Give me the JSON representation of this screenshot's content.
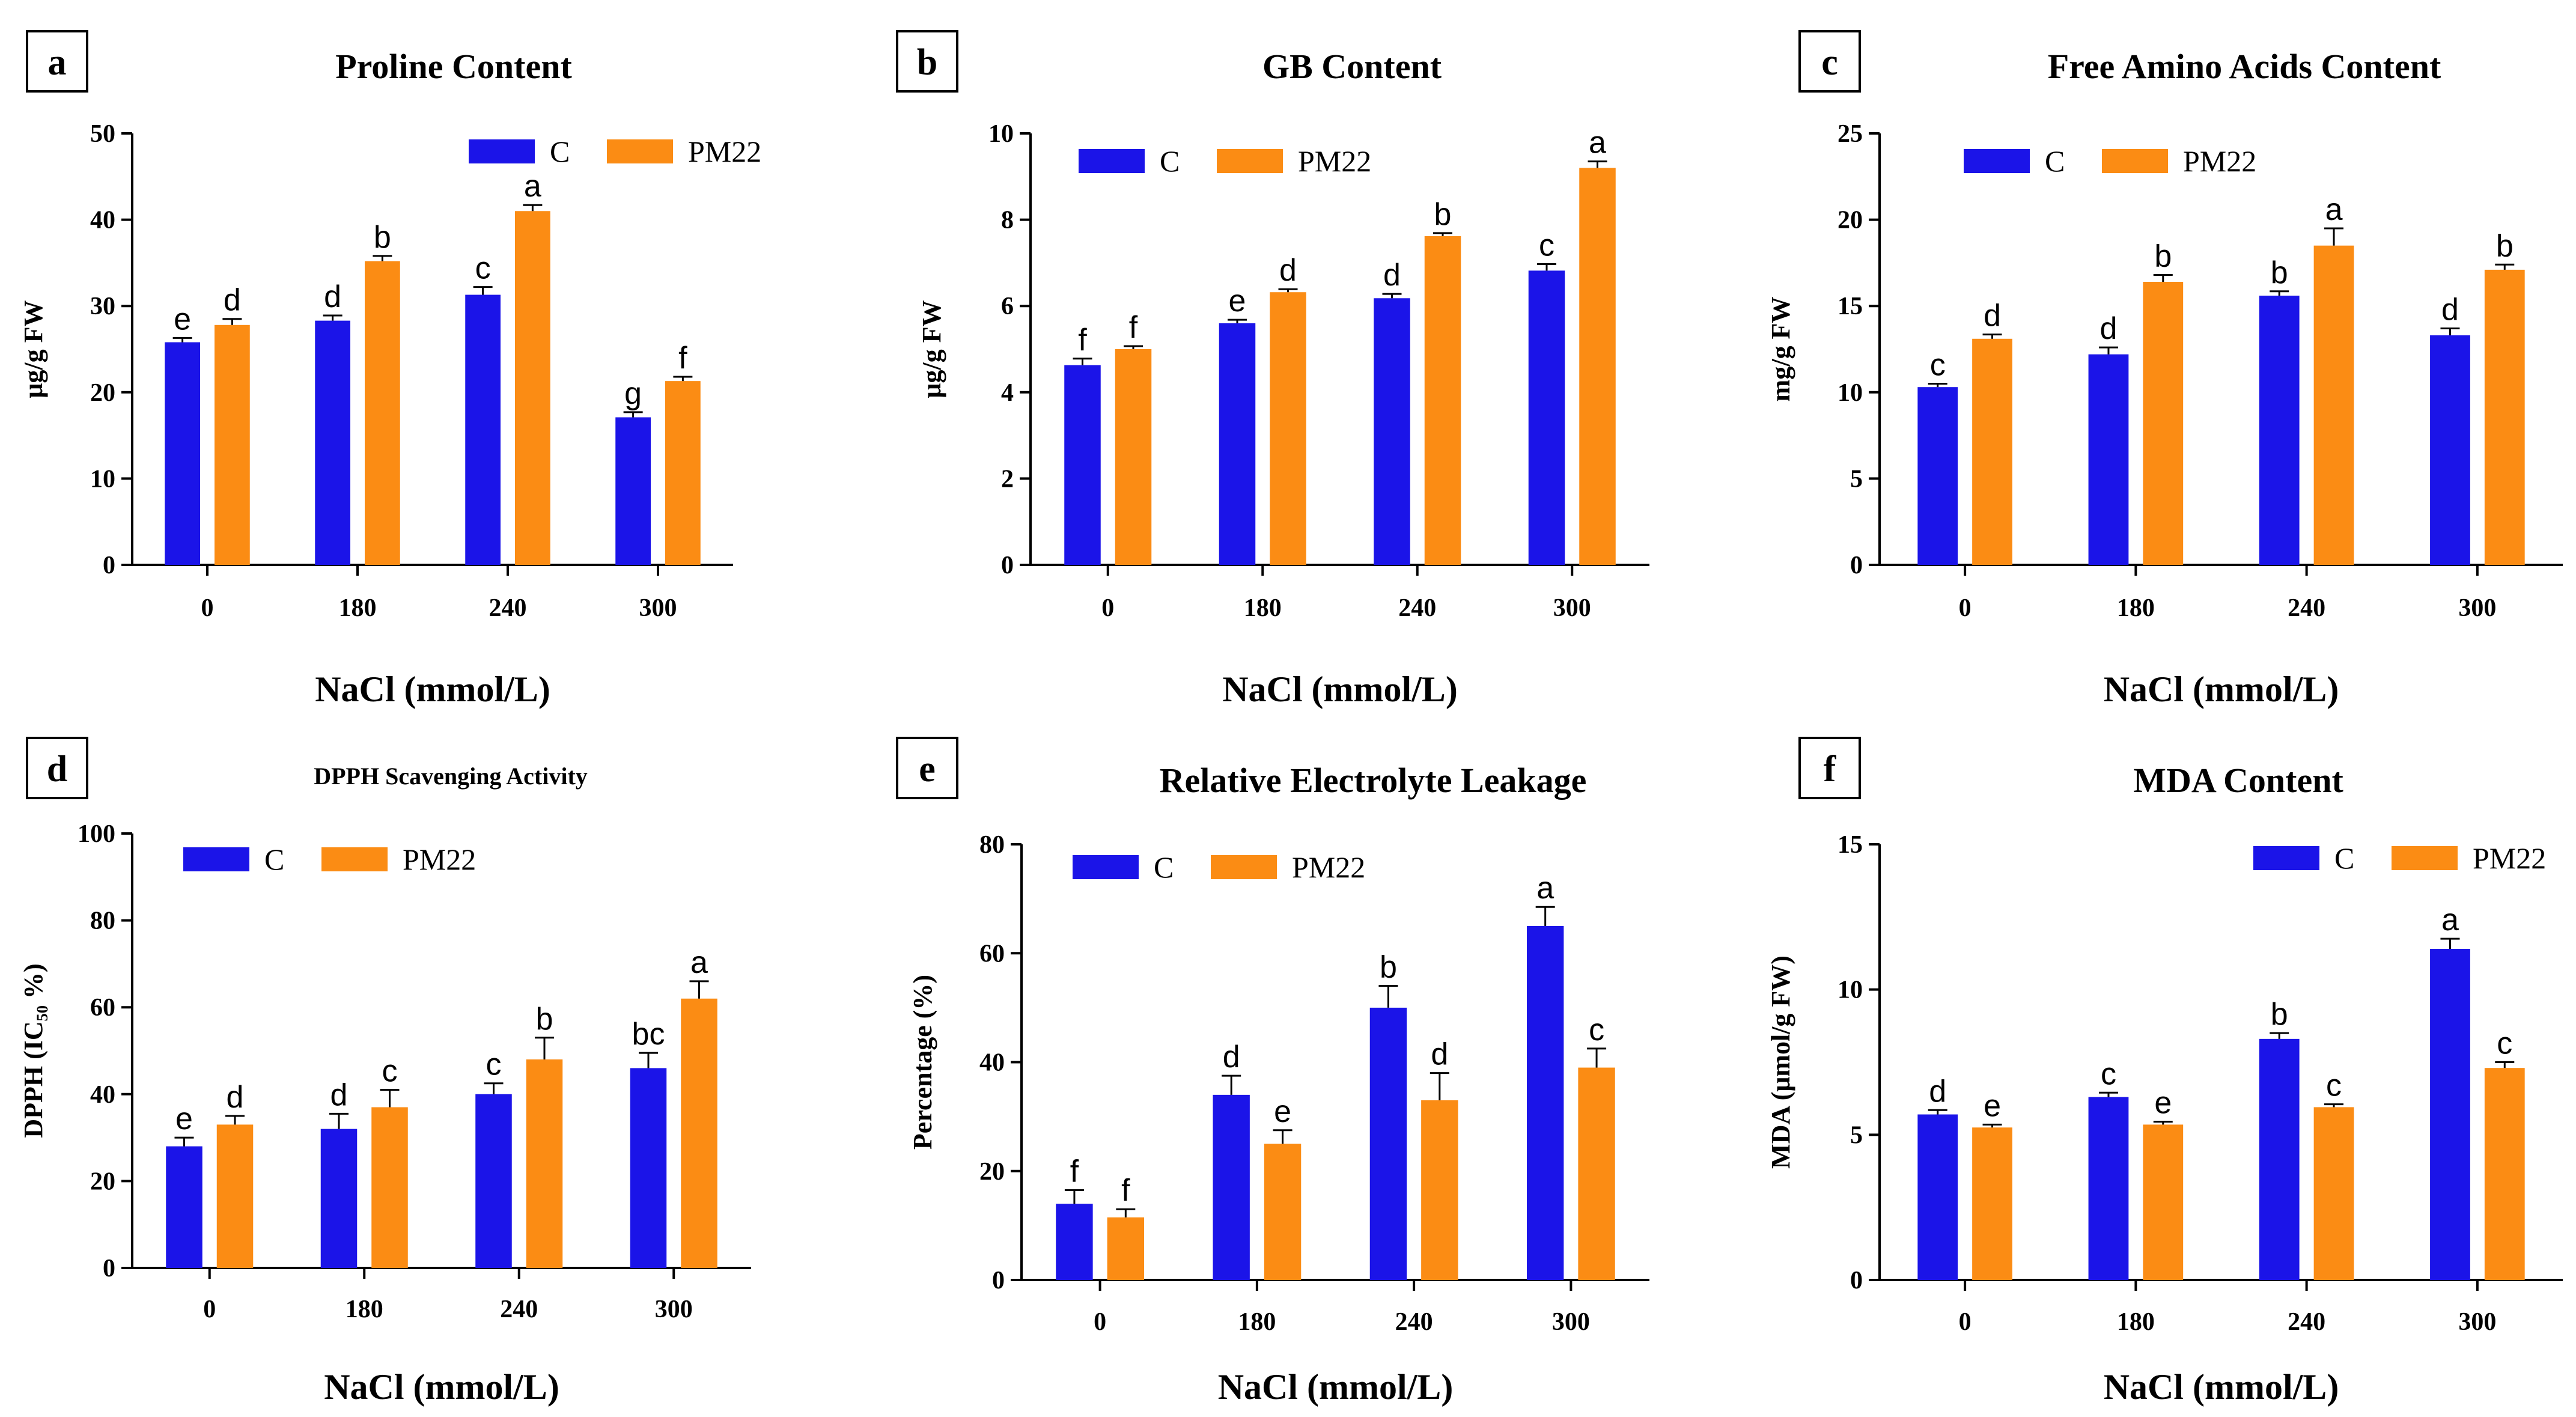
{
  "colors": {
    "C": "#1b14e8",
    "PM22": "#fb8c14",
    "axis": "#000000"
  },
  "chart_data": [
    {
      "panel": "a",
      "type": "bar",
      "title": "Proline Content",
      "ylabel": "μg/g FW",
      "xlabel": "NaCl (mmol/L)",
      "categories": [
        "0",
        "180",
        "240",
        "300"
      ],
      "ylim": [
        0,
        50
      ],
      "yticks": [
        0,
        10,
        20,
        30,
        40,
        50
      ],
      "legend_position": "top-right",
      "series": [
        {
          "name": "C",
          "values": [
            25.8,
            28.3,
            31.3,
            17.1
          ],
          "errors": [
            0.5,
            0.6,
            0.9,
            0.6
          ],
          "letters": [
            "e",
            "d",
            "c",
            "g"
          ]
        },
        {
          "name": "PM22",
          "values": [
            27.8,
            35.2,
            41.0,
            21.3
          ],
          "errors": [
            0.7,
            0.6,
            0.7,
            0.5
          ],
          "letters": [
            "d",
            "b",
            "a",
            "f"
          ]
        }
      ]
    },
    {
      "panel": "b",
      "type": "bar",
      "title": "GB Content",
      "ylabel": "μg/g FW",
      "xlabel": "NaCl (mmol/L)",
      "categories": [
        "0",
        "180",
        "240",
        "300"
      ],
      "ylim": [
        0,
        10
      ],
      "yticks": [
        0,
        2,
        4,
        6,
        8,
        10
      ],
      "legend_position": "top-left",
      "series": [
        {
          "name": "C",
          "values": [
            4.63,
            5.6,
            6.18,
            6.82
          ],
          "errors": [
            0.15,
            0.08,
            0.1,
            0.15
          ],
          "letters": [
            "f",
            "e",
            "d",
            "c"
          ]
        },
        {
          "name": "PM22",
          "values": [
            5.0,
            6.32,
            7.62,
            9.2
          ],
          "errors": [
            0.07,
            0.07,
            0.07,
            0.15
          ],
          "letters": [
            "f",
            "d",
            "b",
            "a"
          ]
        }
      ]
    },
    {
      "panel": "c",
      "type": "bar",
      "title": "Free Amino Acids Content",
      "ylabel": "mg/g FW",
      "xlabel": "NaCl (mmol/L)",
      "categories": [
        "0",
        "180",
        "240",
        "300"
      ],
      "ylim": [
        0,
        25
      ],
      "yticks": [
        0,
        5,
        10,
        15,
        20,
        25
      ],
      "legend_position": "top-left",
      "series": [
        {
          "name": "C",
          "values": [
            10.3,
            12.2,
            15.6,
            13.3
          ],
          "errors": [
            0.2,
            0.4,
            0.25,
            0.4
          ],
          "letters": [
            "c",
            "d",
            "b",
            "d"
          ]
        },
        {
          "name": "PM22",
          "values": [
            13.1,
            16.4,
            18.5,
            17.1
          ],
          "errors": [
            0.25,
            0.4,
            1.0,
            0.3
          ],
          "letters": [
            "d",
            "b",
            "a",
            "b"
          ]
        }
      ]
    },
    {
      "panel": "d",
      "type": "bar",
      "title": "DPPH Scavenging Activity",
      "ylabel": "DPPH (IC₅₀ %)",
      "xlabel": "NaCl (mmol/L)",
      "categories": [
        "0",
        "180",
        "240",
        "300"
      ],
      "ylim": [
        0,
        100
      ],
      "yticks": [
        0,
        20,
        40,
        60,
        80,
        100
      ],
      "legend_position": "top-left",
      "series": [
        {
          "name": "C",
          "values": [
            28,
            32,
            40,
            46
          ],
          "errors": [
            2,
            3.5,
            2.5,
            3.5
          ],
          "letters": [
            "e",
            "d",
            "c",
            "bc"
          ]
        },
        {
          "name": "PM22",
          "values": [
            33,
            37,
            48,
            62
          ],
          "errors": [
            2,
            4,
            5,
            4
          ],
          "letters": [
            "d",
            "c",
            "b",
            "a"
          ]
        }
      ]
    },
    {
      "panel": "e",
      "type": "bar",
      "title": "Relative Electrolyte Leakage",
      "ylabel": "Percentage (%)",
      "xlabel": "NaCl (mmol/L)",
      "categories": [
        "0",
        "180",
        "240",
        "300"
      ],
      "ylim": [
        0,
        80
      ],
      "yticks": [
        0,
        20,
        40,
        60,
        80
      ],
      "legend_position": "top-left",
      "series": [
        {
          "name": "C",
          "values": [
            14,
            34,
            50,
            65
          ],
          "errors": [
            2.5,
            3.5,
            4,
            3.5
          ],
          "letters": [
            "f",
            "d",
            "b",
            "a"
          ]
        },
        {
          "name": "PM22",
          "values": [
            11.5,
            25,
            33,
            39
          ],
          "errors": [
            1.5,
            2.5,
            5,
            3.5
          ],
          "letters": [
            "f",
            "e",
            "d",
            "c"
          ]
        }
      ]
    },
    {
      "panel": "f",
      "type": "bar",
      "title": "MDA Content",
      "ylabel": "MDA (μmol/g FW)",
      "xlabel": "NaCl (mmol/L)",
      "categories": [
        "0",
        "180",
        "240",
        "300"
      ],
      "ylim": [
        0,
        15
      ],
      "yticks": [
        0,
        5,
        10,
        15
      ],
      "legend_position": "top-right",
      "series": [
        {
          "name": "C",
          "values": [
            5.7,
            6.3,
            8.3,
            11.4
          ],
          "errors": [
            0.15,
            0.15,
            0.2,
            0.35
          ],
          "letters": [
            "d",
            "c",
            "b",
            "a"
          ]
        },
        {
          "name": "PM22",
          "values": [
            5.25,
            5.35,
            5.95,
            7.3
          ],
          "errors": [
            0.1,
            0.1,
            0.1,
            0.2
          ],
          "letters": [
            "e",
            "e",
            "c",
            "c"
          ]
        }
      ]
    }
  ]
}
